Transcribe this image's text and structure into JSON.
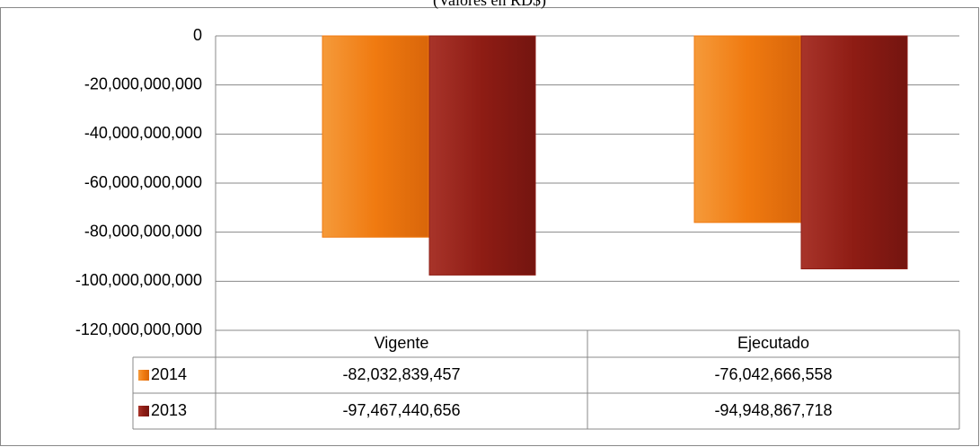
{
  "chart_data": {
    "type": "bar",
    "subtitle": "(Valores en RD$)",
    "categories": [
      "Vigente",
      "Ejecutado"
    ],
    "series": [
      {
        "name": "2014",
        "color": "#f07a10",
        "values": [
          -82032839457,
          -76042666558
        ],
        "value_labels": [
          "-82,032,839,457",
          "-76,042,666,558"
        ]
      },
      {
        "name": "2013",
        "color": "#8e1c14",
        "values": [
          -97467440656,
          -94948867718
        ],
        "value_labels": [
          "-97,467,440,656",
          "-94,948,867,718"
        ]
      }
    ],
    "ylim": [
      -120000000000,
      0
    ],
    "yticks": [
      {
        "value": -120000000000,
        "label": "-120,000,000,000"
      },
      {
        "value": -100000000000,
        "label": "-100,000,000,000"
      },
      {
        "value": -80000000000,
        "label": "-80,000,000,000"
      },
      {
        "value": -60000000000,
        "label": "-60,000,000,000"
      },
      {
        "value": -40000000000,
        "label": "-40,000,000,000"
      },
      {
        "value": -20000000000,
        "label": "-20,000,000,000"
      },
      0
    ],
    "grid": true
  }
}
